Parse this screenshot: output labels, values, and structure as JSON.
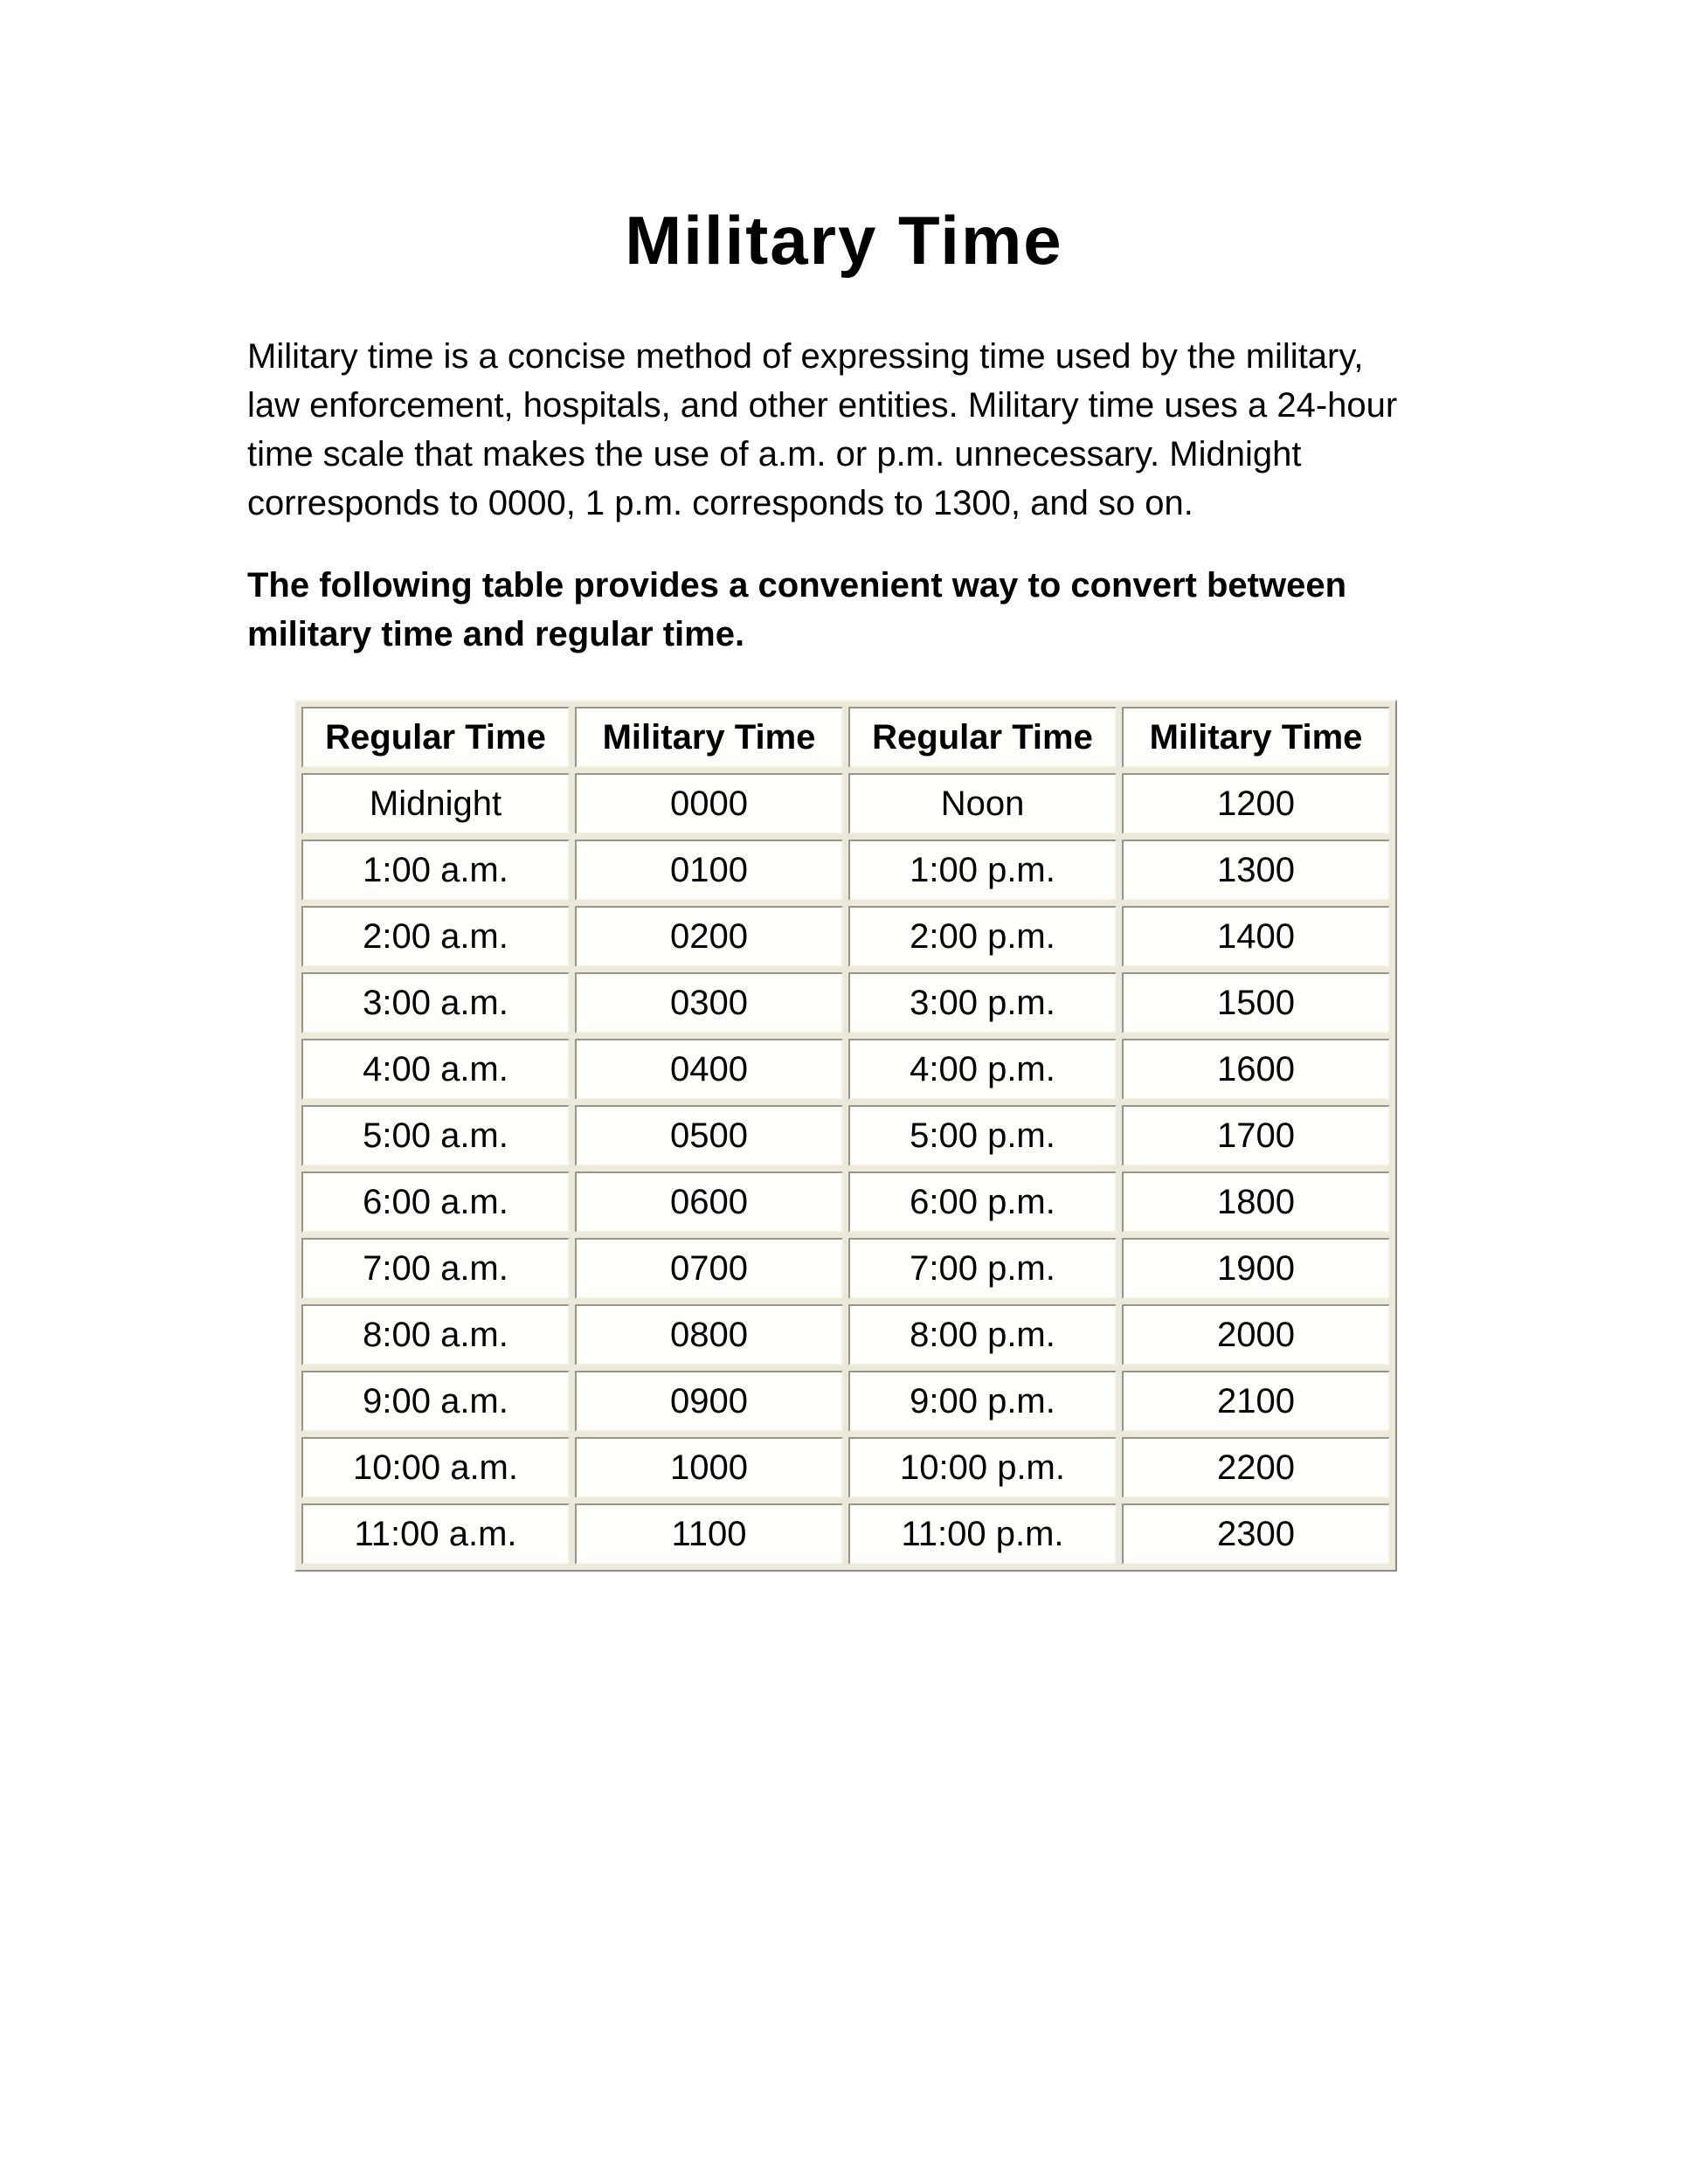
{
  "page": {
    "title": "Military Time",
    "intro_lines": [
      "Military time is a concise method of expressing time used by the military,",
      "law enforcement, hospitals, and other entities. Military time uses a 24-hour",
      "time scale that makes the use of a.m. or p.m. unnecessary. Midnight",
      "corresponds to 0000, 1 p.m. corresponds to 1300, and so on."
    ],
    "note_lines": [
      "The following table provides a convenient way to convert between",
      "military time and regular time."
    ]
  },
  "conversion_table": {
    "headers": [
      "Regular Time",
      "Military Time",
      "Regular Time",
      "Military Time"
    ],
    "rows": [
      [
        "Midnight",
        "0000",
        "Noon",
        "1200"
      ],
      [
        "1:00 a.m.",
        "0100",
        "1:00 p.m.",
        "1300"
      ],
      [
        "2:00 a.m.",
        "0200",
        "2:00 p.m.",
        "1400"
      ],
      [
        "3:00 a.m.",
        "0300",
        "3:00 p.m.",
        "1500"
      ],
      [
        "4:00 a.m.",
        "0400",
        "4:00 p.m.",
        "1600"
      ],
      [
        "5:00 a.m.",
        "0500",
        "5:00 p.m.",
        "1700"
      ],
      [
        "6:00 a.m.",
        "0600",
        "6:00 p.m.",
        "1800"
      ],
      [
        "7:00 a.m.",
        "0700",
        "7:00 p.m.",
        "1900"
      ],
      [
        "8:00 a.m.",
        "0800",
        "8:00 p.m.",
        "2000"
      ],
      [
        "9:00 a.m.",
        "0900",
        "9:00 p.m.",
        "2100"
      ],
      [
        "10:00 a.m.",
        "1000",
        "10:00 p.m.",
        "2200"
      ],
      [
        "11:00 a.m.",
        "1100",
        "11:00 p.m.",
        "2300"
      ]
    ]
  },
  "colors": {
    "page_background": "#ffffff",
    "text": "#000000",
    "table_gap_background": "#ece9da",
    "cell_background": "#fffffb",
    "cell_border_dark": "#98968c",
    "cell_border_light": "#f2efe4",
    "table_border_light": "#f7f4eb",
    "table_border_dark": "#8f8d83"
  }
}
